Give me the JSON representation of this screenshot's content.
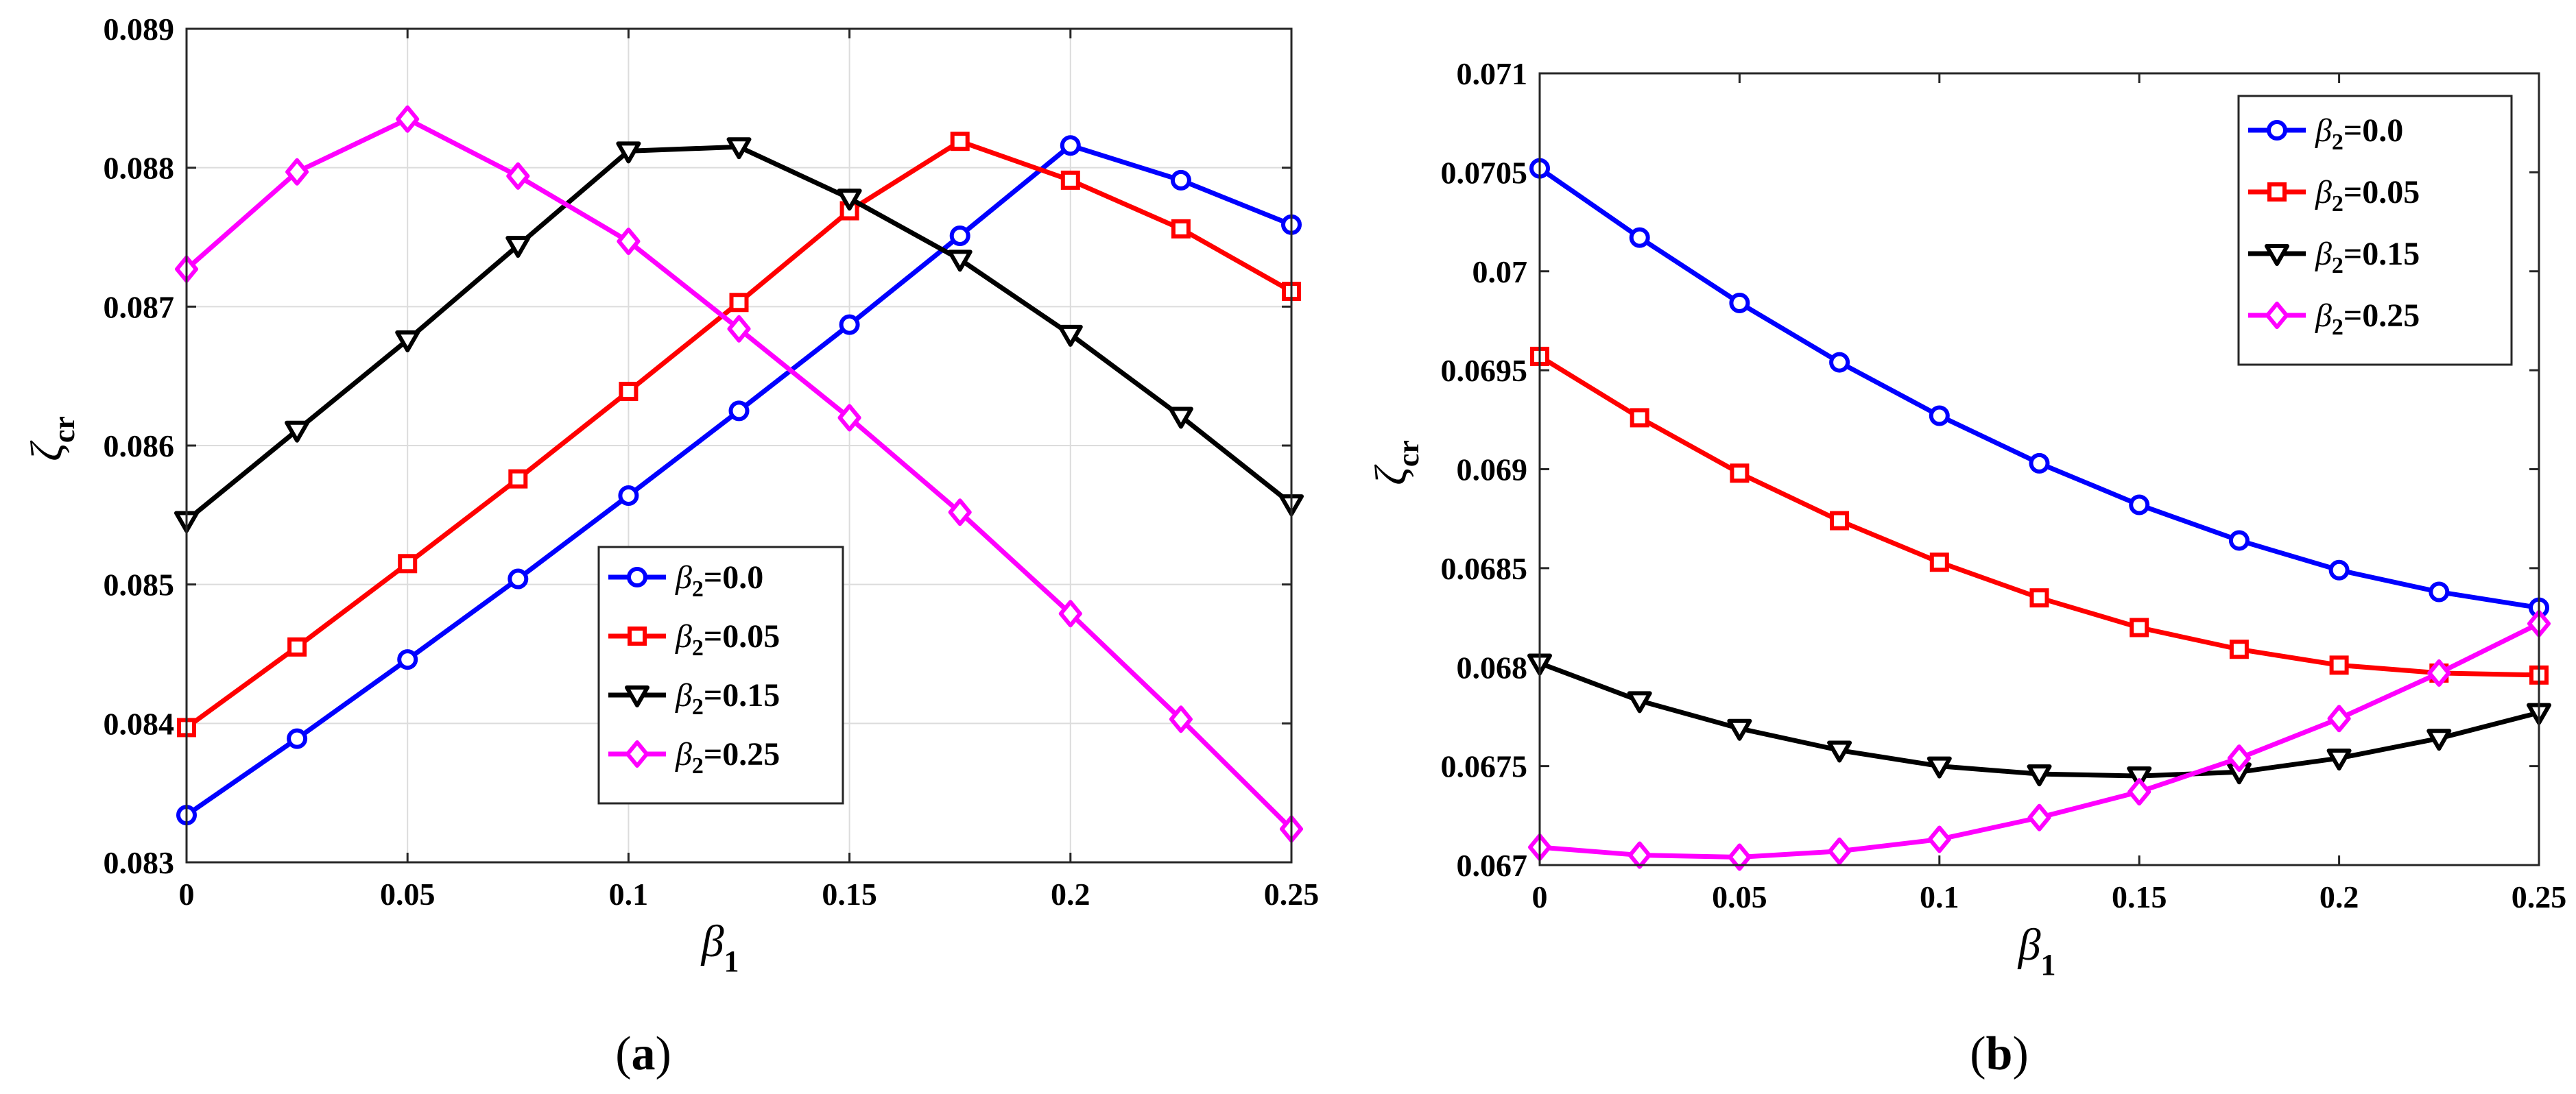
{
  "chart_data": [
    {
      "type": "line",
      "panel": "a",
      "caption": {
        "open": "(",
        "letter": "a",
        "close": ")"
      },
      "xlabel": {
        "symbol": "β",
        "sub": "1"
      },
      "ylabel": {
        "symbol": "ζ",
        "sub": "cr"
      },
      "xlim": [
        0,
        0.25
      ],
      "ylim": [
        0.083,
        0.089
      ],
      "xticks": [
        0,
        0.05,
        0.1,
        0.15,
        0.2,
        0.25
      ],
      "xtick_labels": [
        "0",
        "0.05",
        "0.1",
        "0.15",
        "0.2",
        "0.25"
      ],
      "yticks": [
        0.083,
        0.084,
        0.085,
        0.086,
        0.087,
        0.088,
        0.089
      ],
      "ytick_labels": [
        "0.083",
        "0.084",
        "0.085",
        "0.086",
        "0.087",
        "0.088",
        "0.089"
      ],
      "grid": true,
      "legend_position": "bottom-center",
      "x": [
        0,
        0.025,
        0.05,
        0.075,
        0.1,
        0.125,
        0.15,
        0.175,
        0.2,
        0.225,
        0.25
      ],
      "series": [
        {
          "name": "β2=0.0",
          "label_beta": "β",
          "label_sub": "2",
          "label_rest": "=0.0",
          "color": "#0000ff",
          "marker": "circle",
          "values": [
            0.08334,
            0.08389,
            0.08446,
            0.08504,
            0.08564,
            0.08625,
            0.08687,
            0.08751,
            0.08816,
            0.08791,
            0.08759
          ]
        },
        {
          "name": "β2=0.05",
          "label_beta": "β",
          "label_sub": "2",
          "label_rest": "=0.05",
          "color": "#ff0000",
          "marker": "square",
          "values": [
            0.08397,
            0.08455,
            0.08515,
            0.08576,
            0.08639,
            0.08703,
            0.08769,
            0.08819,
            0.08791,
            0.08756,
            0.08711
          ]
        },
        {
          "name": "β2=0.15",
          "label_beta": "β",
          "label_sub": "2",
          "label_rest": "=0.15",
          "color": "#000000",
          "marker": "triangle-down",
          "values": [
            0.08546,
            0.08611,
            0.08676,
            0.08744,
            0.08812,
            0.08815,
            0.08778,
            0.08734,
            0.0868,
            0.08621,
            0.08558
          ]
        },
        {
          "name": "β2=0.25",
          "label_beta": "β",
          "label_sub": "2",
          "label_rest": "=0.25",
          "color": "#ff00ff",
          "marker": "diamond",
          "values": [
            0.08727,
            0.08797,
            0.08835,
            0.08794,
            0.08747,
            0.08684,
            0.0862,
            0.08552,
            0.08479,
            0.08403,
            0.08324
          ]
        }
      ]
    },
    {
      "type": "line",
      "panel": "b",
      "caption": {
        "open": "(",
        "letter": "b",
        "close": ")"
      },
      "xlabel": {
        "symbol": "β",
        "sub": "1"
      },
      "ylabel": {
        "symbol": "ζ",
        "sub": "cr"
      },
      "xlim": [
        0,
        0.25
      ],
      "ylim": [
        0.067,
        0.071
      ],
      "xticks": [
        0,
        0.05,
        0.1,
        0.15,
        0.2,
        0.25
      ],
      "xtick_labels": [
        "0",
        "0.05",
        "0.1",
        "0.15",
        "0.2",
        "0.25"
      ],
      "yticks": [
        0.067,
        0.0675,
        0.068,
        0.0685,
        0.069,
        0.0695,
        0.07,
        0.0705,
        0.071
      ],
      "ytick_labels": [
        "0.067",
        "0.0675",
        "0.068",
        "0.0685",
        "0.069",
        "0.0695",
        "0.07",
        "0.0705",
        "0.071"
      ],
      "grid": false,
      "legend_position": "top-right",
      "x": [
        0,
        0.025,
        0.05,
        0.075,
        0.1,
        0.125,
        0.15,
        0.175,
        0.2,
        0.225,
        0.25
      ],
      "series": [
        {
          "name": "β2=0.0",
          "label_beta": "β",
          "label_sub": "2",
          "label_rest": "=0.0",
          "color": "#0000ff",
          "marker": "circle",
          "values": [
            0.07052,
            0.07017,
            0.06984,
            0.06954,
            0.06927,
            0.06903,
            0.06882,
            0.06864,
            0.06849,
            0.06838,
            0.0683
          ]
        },
        {
          "name": "β2=0.05",
          "label_beta": "β",
          "label_sub": "2",
          "label_rest": "=0.05",
          "color": "#ff0000",
          "marker": "square",
          "values": [
            0.06957,
            0.06926,
            0.06898,
            0.06874,
            0.06853,
            0.06835,
            0.0682,
            0.06809,
            0.06801,
            0.06797,
            0.06796
          ]
        },
        {
          "name": "β2=0.15",
          "label_beta": "β",
          "label_sub": "2",
          "label_rest": "=0.15",
          "color": "#000000",
          "marker": "triangle-down",
          "values": [
            0.06802,
            0.06783,
            0.06769,
            0.06758,
            0.0675,
            0.06746,
            0.06745,
            0.06747,
            0.06754,
            0.06764,
            0.06777
          ]
        },
        {
          "name": "β2=0.25",
          "label_beta": "β",
          "label_sub": "2",
          "label_rest": "=0.25",
          "color": "#ff00ff",
          "marker": "diamond",
          "values": [
            0.06709,
            0.06705,
            0.06704,
            0.06707,
            0.06713,
            0.06724,
            0.06737,
            0.06754,
            0.06774,
            0.06797,
            0.06822
          ]
        }
      ]
    }
  ]
}
